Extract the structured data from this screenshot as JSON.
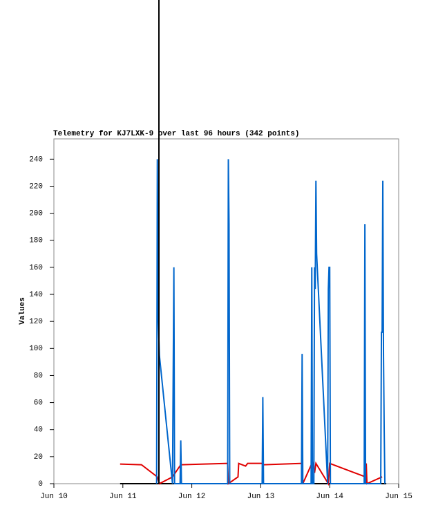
{
  "chart_data": {
    "type": "line",
    "title": "Telemetry for KJ7LXK-9 over last 96 hours (342 points)",
    "y_label": "Values",
    "xlim": [
      10,
      15
    ],
    "xticks": [
      {
        "value": 10,
        "label": "Jun 10"
      },
      {
        "value": 11,
        "label": "Jun 11"
      },
      {
        "value": 12,
        "label": "Jun 12"
      },
      {
        "value": 13,
        "label": "Jun 13"
      },
      {
        "value": 14,
        "label": "Jun 14"
      },
      {
        "value": 15,
        "label": "Jun 15"
      }
    ],
    "ylim": [
      0,
      255
    ],
    "yticks": [
      0,
      20,
      40,
      60,
      80,
      100,
      120,
      140,
      160,
      180,
      200,
      220,
      240
    ],
    "series": [
      {
        "color": "#000000",
        "x": [
          10.96,
          14.82
        ],
        "values": [
          0,
          0
        ]
      },
      {
        "color": "#e00000",
        "x": [
          10.96,
          11.27,
          11.5,
          11.53,
          11.72,
          11.84,
          12.52,
          12.53,
          12.67,
          12.68,
          12.78,
          12.81,
          13.01,
          13.04,
          13.6,
          13.61,
          13.75,
          13.78,
          13.8,
          13.98,
          14.0,
          14.52,
          14.53,
          14.54,
          14.76
        ],
        "values": [
          14.5,
          14,
          5,
          0,
          5,
          14,
          15,
          0,
          5,
          15,
          13,
          15,
          15,
          14,
          15,
          0,
          16,
          8,
          15,
          0,
          15,
          5,
          15,
          0,
          5
        ]
      },
      {
        "color": "#0066cc",
        "x": [
          11.49,
          11.5,
          11.51,
          11.53,
          11.72,
          11.73,
          11.74,
          11.75,
          11.83,
          11.84,
          11.85,
          12.52,
          12.53,
          12.54,
          12.55,
          13.02,
          13.03,
          13.04,
          13.59,
          13.6,
          13.61,
          13.73,
          13.74,
          13.75,
          13.77,
          13.78,
          13.79,
          13.8,
          13.81,
          13.97,
          13.98,
          13.99,
          14.0,
          14.01,
          14.5,
          14.51,
          14.52,
          14.74,
          14.75,
          14.76,
          14.77,
          14.78,
          14.79,
          14.8
        ],
        "values": [
          0,
          240,
          128,
          95,
          0,
          80,
          160,
          0,
          0,
          32,
          0,
          0,
          240,
          192,
          0,
          0,
          64,
          0,
          0,
          96,
          0,
          0,
          160,
          0,
          0,
          160,
          144,
          224,
          170,
          0,
          144,
          160,
          160,
          0,
          0,
          192,
          0,
          0,
          112,
          112,
          224,
          96,
          40,
          0
        ]
      }
    ]
  }
}
